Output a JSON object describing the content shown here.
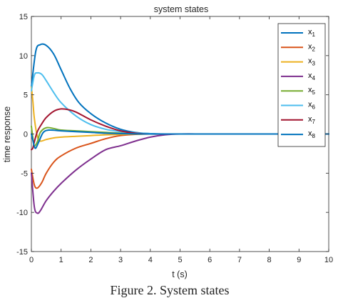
{
  "chart_data": {
    "type": "line",
    "title": "system states",
    "xlabel": "t (s)",
    "ylabel": "time response",
    "xlim": [
      0,
      10
    ],
    "ylim": [
      -15,
      15
    ],
    "xticks": [
      0,
      1,
      2,
      3,
      4,
      5,
      6,
      7,
      8,
      9,
      10
    ],
    "yticks": [
      -15,
      -10,
      -5,
      0,
      5,
      10,
      15
    ],
    "grid": false,
    "legend_position": "top-right",
    "series": [
      {
        "name": "x1",
        "label_base": "x",
        "label_sub": "1",
        "color": "#0072BD",
        "x": [
          0,
          0.15,
          0.3,
          0.5,
          0.75,
          1.0,
          1.3,
          1.6,
          2.0,
          2.5,
          3.0,
          3.5,
          4.0,
          4.5,
          5.0,
          6.0,
          8.0,
          10.0
        ],
        "y": [
          6,
          10.6,
          11.4,
          11.3,
          10.2,
          8.2,
          5.8,
          4.0,
          2.6,
          1.4,
          0.6,
          0.2,
          0.05,
          0.0,
          0.0,
          0.0,
          0.0,
          0.0
        ]
      },
      {
        "name": "x2",
        "label_base": "x",
        "label_sub": "2",
        "color": "#D95319",
        "x": [
          0,
          0.1,
          0.2,
          0.35,
          0.5,
          0.75,
          1.0,
          1.5,
          2.0,
          2.5,
          3.0,
          3.5,
          4.0,
          4.5,
          5.0,
          6.0,
          8.0,
          10.0
        ],
        "y": [
          -4.5,
          -6.5,
          -6.9,
          -6.2,
          -5.0,
          -3.6,
          -2.8,
          -1.8,
          -1.2,
          -0.6,
          -0.2,
          -0.05,
          0.0,
          0.0,
          0.0,
          0.0,
          0.0,
          0.0
        ]
      },
      {
        "name": "x3",
        "label_base": "x",
        "label_sub": "3",
        "color": "#EDB120",
        "x": [
          0,
          0.05,
          0.1,
          0.2,
          0.3,
          0.5,
          0.75,
          1.0,
          1.5,
          2.0,
          2.5,
          3.0,
          3.5,
          4.0,
          5.0,
          6.0,
          8.0,
          10.0
        ],
        "y": [
          6,
          4.2,
          2.0,
          -0.3,
          -0.9,
          -0.7,
          -0.5,
          -0.4,
          -0.3,
          -0.2,
          -0.1,
          -0.05,
          0.0,
          0.0,
          0.0,
          0.0,
          0.0,
          0.0
        ]
      },
      {
        "name": "x4",
        "label_base": "x",
        "label_sub": "4",
        "color": "#7E2F8E",
        "x": [
          0,
          0.1,
          0.2,
          0.3,
          0.5,
          0.75,
          1.0,
          1.5,
          2.0,
          2.5,
          3.0,
          3.5,
          4.0,
          4.5,
          5.0,
          6.0,
          8.0,
          10.0
        ],
        "y": [
          -5,
          -9.3,
          -10.1,
          -9.8,
          -8.5,
          -7.3,
          -6.3,
          -4.6,
          -3.2,
          -2.0,
          -1.5,
          -0.9,
          -0.4,
          -0.1,
          0.0,
          0.0,
          0.0,
          0.0
        ]
      },
      {
        "name": "x5",
        "label_base": "x",
        "label_sub": "5",
        "color": "#77AC30",
        "x": [
          0,
          0.05,
          0.1,
          0.2,
          0.3,
          0.5,
          0.75,
          1.0,
          1.5,
          2.0,
          2.5,
          3.0,
          3.5,
          4.0,
          5.0,
          6.0,
          8.0,
          10.0
        ],
        "y": [
          1.0,
          -0.5,
          -1.5,
          -1.0,
          0.2,
          0.8,
          0.7,
          0.5,
          0.4,
          0.3,
          0.2,
          0.1,
          0.0,
          0.0,
          0.0,
          0.0,
          0.0,
          0.0
        ]
      },
      {
        "name": "x6",
        "label_base": "x",
        "label_sub": "6",
        "color": "#4DBEEE",
        "x": [
          0,
          0.1,
          0.2,
          0.35,
          0.5,
          0.75,
          1.0,
          1.5,
          2.0,
          2.5,
          3.0,
          3.5,
          4.0,
          4.5,
          5.0,
          6.0,
          8.0,
          10.0
        ],
        "y": [
          5.5,
          7.5,
          7.8,
          7.6,
          6.8,
          5.3,
          4.0,
          2.3,
          1.2,
          0.6,
          0.3,
          0.15,
          0.05,
          0.0,
          0.0,
          0.0,
          0.0,
          0.0
        ]
      },
      {
        "name": "x7",
        "label_base": "x",
        "label_sub": "7",
        "color": "#A2142F",
        "x": [
          0,
          0.05,
          0.1,
          0.2,
          0.35,
          0.5,
          0.75,
          1.0,
          1.25,
          1.5,
          2.0,
          2.5,
          3.0,
          3.5,
          4.0,
          5.0,
          8.0,
          10.0
        ],
        "y": [
          -2.0,
          -1.8,
          -1.0,
          0.3,
          1.3,
          2.1,
          2.9,
          3.2,
          3.1,
          2.8,
          1.8,
          1.0,
          0.4,
          0.1,
          0.0,
          0.0,
          0.0,
          0.0
        ]
      },
      {
        "name": "x8",
        "label_base": "x",
        "label_sub": "8",
        "color": "#0072BD",
        "x": [
          0,
          0.05,
          0.1,
          0.15,
          0.25,
          0.4,
          0.6,
          1.0,
          1.5,
          2.0,
          2.5,
          3.0,
          4.0,
          5.0,
          6.0,
          8.0,
          10.0
        ],
        "y": [
          0.0,
          -0.8,
          -1.6,
          -1.8,
          -1.0,
          0.2,
          0.5,
          0.4,
          0.3,
          0.2,
          0.1,
          0.05,
          0.0,
          0.0,
          0.0,
          0.0,
          0.0
        ]
      }
    ]
  },
  "caption": "Figure 2. System states"
}
